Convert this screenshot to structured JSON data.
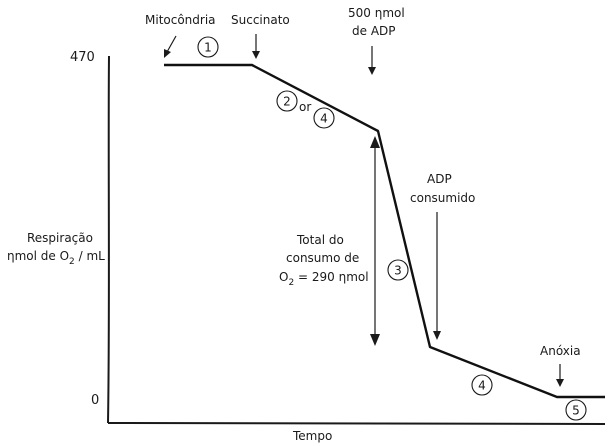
{
  "axes": {
    "y_label_line1": "Respiração",
    "y_label_line2_prefix": "ηmol de O",
    "y_label_line2_sub": "2",
    "y_label_line2_suffix": " / mL",
    "x_label": "Tempo",
    "y_tick_top": "470",
    "y_tick_bottom": "0"
  },
  "annotations": {
    "mitochondria": "Mitocôndria",
    "succinate": "Succinato",
    "adp_added_line1": "500 ηmol",
    "adp_added_line2": "de ADP",
    "adp_consumed_line1": "ADP",
    "adp_consumed_line2": "consumido",
    "anoxia": "Anóxia",
    "total_line1": "Total do",
    "total_line2": "consumo de",
    "total_line3_prefix": "O",
    "total_line3_sub": "2",
    "total_line3_suffix": " = 290 ηmol",
    "or_word": "or"
  },
  "states": [
    "1",
    "2",
    "4",
    "3",
    "4",
    "5"
  ]
}
